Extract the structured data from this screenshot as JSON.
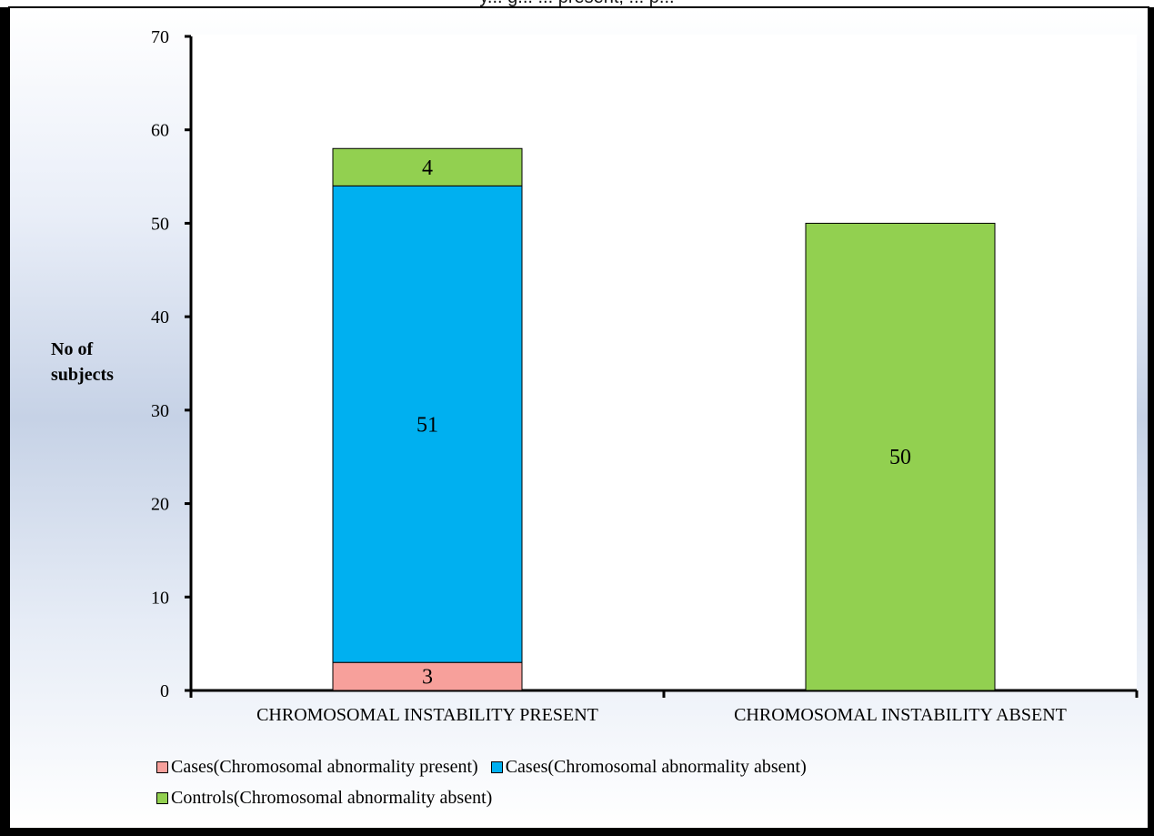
{
  "caption_fragment": "y... g... ... present, ... p...",
  "chart_data": {
    "type": "bar",
    "stacked": true,
    "categories": [
      "CHROMOSOMAL INSTABILITY PRESENT",
      "CHROMOSOMAL INSTABILITY ABSENT"
    ],
    "series": [
      {
        "name": "Cases(Chromosomal abnormality present)",
        "values": [
          3,
          0
        ],
        "color": "#f7a09b"
      },
      {
        "name": "Cases(Chromosomal abnormality absent)",
        "values": [
          51,
          0
        ],
        "color": "#00b0f0"
      },
      {
        "name": "Controls(Chromosomal abnormality absent)",
        "values": [
          4,
          50
        ],
        "color": "#92d050"
      }
    ],
    "data_labels": [
      [
        "3",
        "51",
        "4"
      ],
      [
        "",
        "",
        "50"
      ]
    ],
    "ylabel": "No of subjects",
    "ylim": [
      0,
      70
    ],
    "yticks": [
      0,
      10,
      20,
      30,
      40,
      50,
      60,
      70
    ],
    "grid": false,
    "legend_position": "bottom"
  }
}
